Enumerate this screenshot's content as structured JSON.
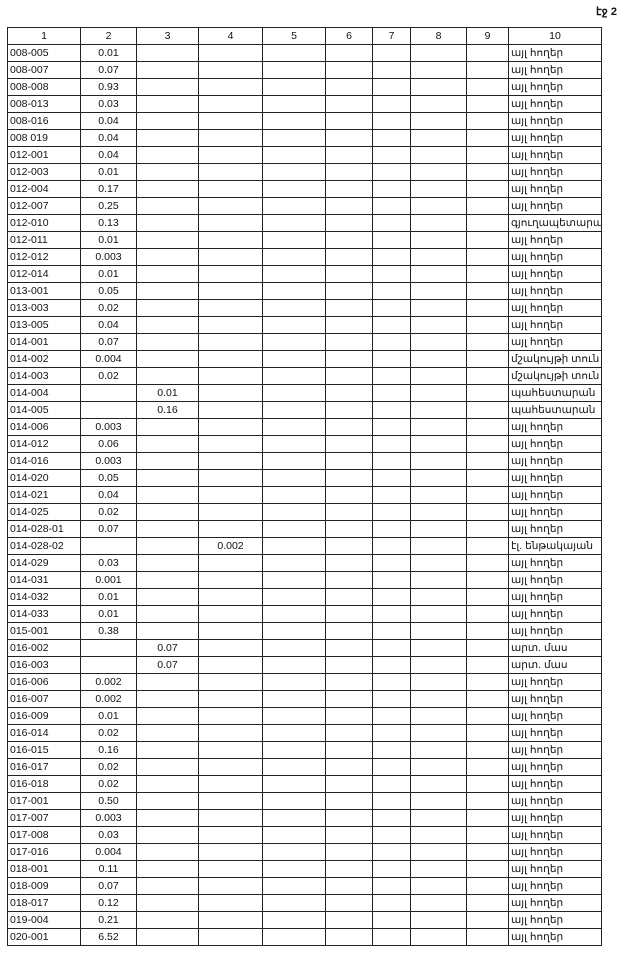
{
  "page_label": "էջ 2",
  "columns": [
    "1",
    "2",
    "3",
    "4",
    "5",
    "6",
    "7",
    "8",
    "9",
    "10"
  ],
  "rows": [
    [
      "008-005",
      "0.01",
      "",
      "",
      "",
      "",
      "",
      "",
      "",
      "այլ հողեր"
    ],
    [
      "008-007",
      "0.07",
      "",
      "",
      "",
      "",
      "",
      "",
      "",
      "այլ հողեր"
    ],
    [
      "008-008",
      "0.93",
      "",
      "",
      "",
      "",
      "",
      "",
      "",
      "այլ հողեր"
    ],
    [
      "008-013",
      "0.03",
      "",
      "",
      "",
      "",
      "",
      "",
      "",
      "այլ հողեր"
    ],
    [
      "008-016",
      "0.04",
      "",
      "",
      "",
      "",
      "",
      "",
      "",
      "այլ հողեր"
    ],
    [
      "008 019",
      "0.04",
      "",
      "",
      "",
      "",
      "",
      "",
      "",
      "այլ հողեր"
    ],
    [
      "012-001",
      "0.04",
      "",
      "",
      "",
      "",
      "",
      "",
      "",
      "այլ հողեր"
    ],
    [
      "012-003",
      "0.01",
      "",
      "",
      "",
      "",
      "",
      "",
      "",
      "այլ հողեր"
    ],
    [
      "012-004",
      "0.17",
      "",
      "",
      "",
      "",
      "",
      "",
      "",
      "այլ հողեր"
    ],
    [
      "012-007",
      "0.25",
      "",
      "",
      "",
      "",
      "",
      "",
      "",
      "այլ հողեր"
    ],
    [
      "012-010",
      "0.13",
      "",
      "",
      "",
      "",
      "",
      "",
      "",
      "գյուղապետարան"
    ],
    [
      "012-011",
      "0.01",
      "",
      "",
      "",
      "",
      "",
      "",
      "",
      "այլ հողեր"
    ],
    [
      "012-012",
      "0.003",
      "",
      "",
      "",
      "",
      "",
      "",
      "",
      "այլ հողեր"
    ],
    [
      "012-014",
      "0.01",
      "",
      "",
      "",
      "",
      "",
      "",
      "",
      "այլ հողեր"
    ],
    [
      "013-001",
      "0.05",
      "",
      "",
      "",
      "",
      "",
      "",
      "",
      "այլ հողեր"
    ],
    [
      "013-003",
      "0.02",
      "",
      "",
      "",
      "",
      "",
      "",
      "",
      "այլ հողեր"
    ],
    [
      "013-005",
      "0.04",
      "",
      "",
      "",
      "",
      "",
      "",
      "",
      "այլ հողեր"
    ],
    [
      "014-001",
      "0.07",
      "",
      "",
      "",
      "",
      "",
      "",
      "",
      "այլ հողեր"
    ],
    [
      "014-002",
      "0.004",
      "",
      "",
      "",
      "",
      "",
      "",
      "",
      "մշակույթի տուն"
    ],
    [
      "014-003",
      "0.02",
      "",
      "",
      "",
      "",
      "",
      "",
      "",
      "մշակույթի տուն"
    ],
    [
      "014-004",
      "",
      "0.01",
      "",
      "",
      "",
      "",
      "",
      "",
      "պահեստարան"
    ],
    [
      "014-005",
      "",
      "0.16",
      "",
      "",
      "",
      "",
      "",
      "",
      "պահեստարան"
    ],
    [
      "014-006",
      "0.003",
      "",
      "",
      "",
      "",
      "",
      "",
      "",
      "այլ հողեր"
    ],
    [
      "014-012",
      "0.06",
      "",
      "",
      "",
      "",
      "",
      "",
      "",
      "այլ հողեր"
    ],
    [
      "014-016",
      "0.003",
      "",
      "",
      "",
      "",
      "",
      "",
      "",
      "այլ հողեր"
    ],
    [
      "014-020",
      "0.05",
      "",
      "",
      "",
      "",
      "",
      "",
      "",
      "այլ հողեր"
    ],
    [
      "014-021",
      "0.04",
      "",
      "",
      "",
      "",
      "",
      "",
      "",
      "այլ հողեր"
    ],
    [
      "014-025",
      "0.02",
      "",
      "",
      "",
      "",
      "",
      "",
      "",
      "այլ հողեր"
    ],
    [
      "014-028-01",
      "0.07",
      "",
      "",
      "",
      "",
      "",
      "",
      "",
      "այլ հողեր"
    ],
    [
      "014-028-02",
      "",
      "",
      "0.002",
      "",
      "",
      "",
      "",
      "",
      "էլ. ենթակայան"
    ],
    [
      "014-029",
      "0.03",
      "",
      "",
      "",
      "",
      "",
      "",
      "",
      "այլ հողեր"
    ],
    [
      "014-031",
      "0.001",
      "",
      "",
      "",
      "",
      "",
      "",
      "",
      "այլ հողեր"
    ],
    [
      "014-032",
      "0.01",
      "",
      "",
      "",
      "",
      "",
      "",
      "",
      "այլ հողեր"
    ],
    [
      "014-033",
      "0.01",
      "",
      "",
      "",
      "",
      "",
      "",
      "",
      "այլ հողեր"
    ],
    [
      "015-001",
      "0.38",
      "",
      "",
      "",
      "",
      "",
      "",
      "",
      "այլ հողեր"
    ],
    [
      "016-002",
      "",
      "0.07",
      "",
      "",
      "",
      "",
      "",
      "",
      "արտ. մաս"
    ],
    [
      "016-003",
      "",
      "0.07",
      "",
      "",
      "",
      "",
      "",
      "",
      "արտ. մաս"
    ],
    [
      "016-006",
      "0.002",
      "",
      "",
      "",
      "",
      "",
      "",
      "",
      "այլ հողեր"
    ],
    [
      "016-007",
      "0.002",
      "",
      "",
      "",
      "",
      "",
      "",
      "",
      "այլ հողեր"
    ],
    [
      "016-009",
      "0.01",
      "",
      "",
      "",
      "",
      "",
      "",
      "",
      "այլ հողեր"
    ],
    [
      "016-014",
      "0.02",
      "",
      "",
      "",
      "",
      "",
      "",
      "",
      "այլ հողեր"
    ],
    [
      "016-015",
      "0.16",
      "",
      "",
      "",
      "",
      "",
      "",
      "",
      "այլ հողեր"
    ],
    [
      "016-017",
      "0.02",
      "",
      "",
      "",
      "",
      "",
      "",
      "",
      "այլ հողեր"
    ],
    [
      "016-018",
      "0.02",
      "",
      "",
      "",
      "",
      "",
      "",
      "",
      "այլ հողեր"
    ],
    [
      "017-001",
      "0.50",
      "",
      "",
      "",
      "",
      "",
      "",
      "",
      "այլ հողեր"
    ],
    [
      "017-007",
      "0.003",
      "",
      "",
      "",
      "",
      "",
      "",
      "",
      "այլ հողեր"
    ],
    [
      "017-008",
      "0.03",
      "",
      "",
      "",
      "",
      "",
      "",
      "",
      "այլ հողեր"
    ],
    [
      "017-016",
      "0.004",
      "",
      "",
      "",
      "",
      "",
      "",
      "",
      "այլ հողեր"
    ],
    [
      "018-001",
      "0.11",
      "",
      "",
      "",
      "",
      "",
      "",
      "",
      "այլ հողեր"
    ],
    [
      "018-009",
      "0.07",
      "",
      "",
      "",
      "",
      "",
      "",
      "",
      "այլ հողեր"
    ],
    [
      "018-017",
      "0.12",
      "",
      "",
      "",
      "",
      "",
      "",
      "",
      "այլ հողեր"
    ],
    [
      "019-004",
      "0.21",
      "",
      "",
      "",
      "",
      "",
      "",
      "",
      "այլ հողեր"
    ],
    [
      "020-001",
      "6.52",
      "",
      "",
      "",
      "",
      "",
      "",
      "",
      "այլ հողեր"
    ]
  ]
}
